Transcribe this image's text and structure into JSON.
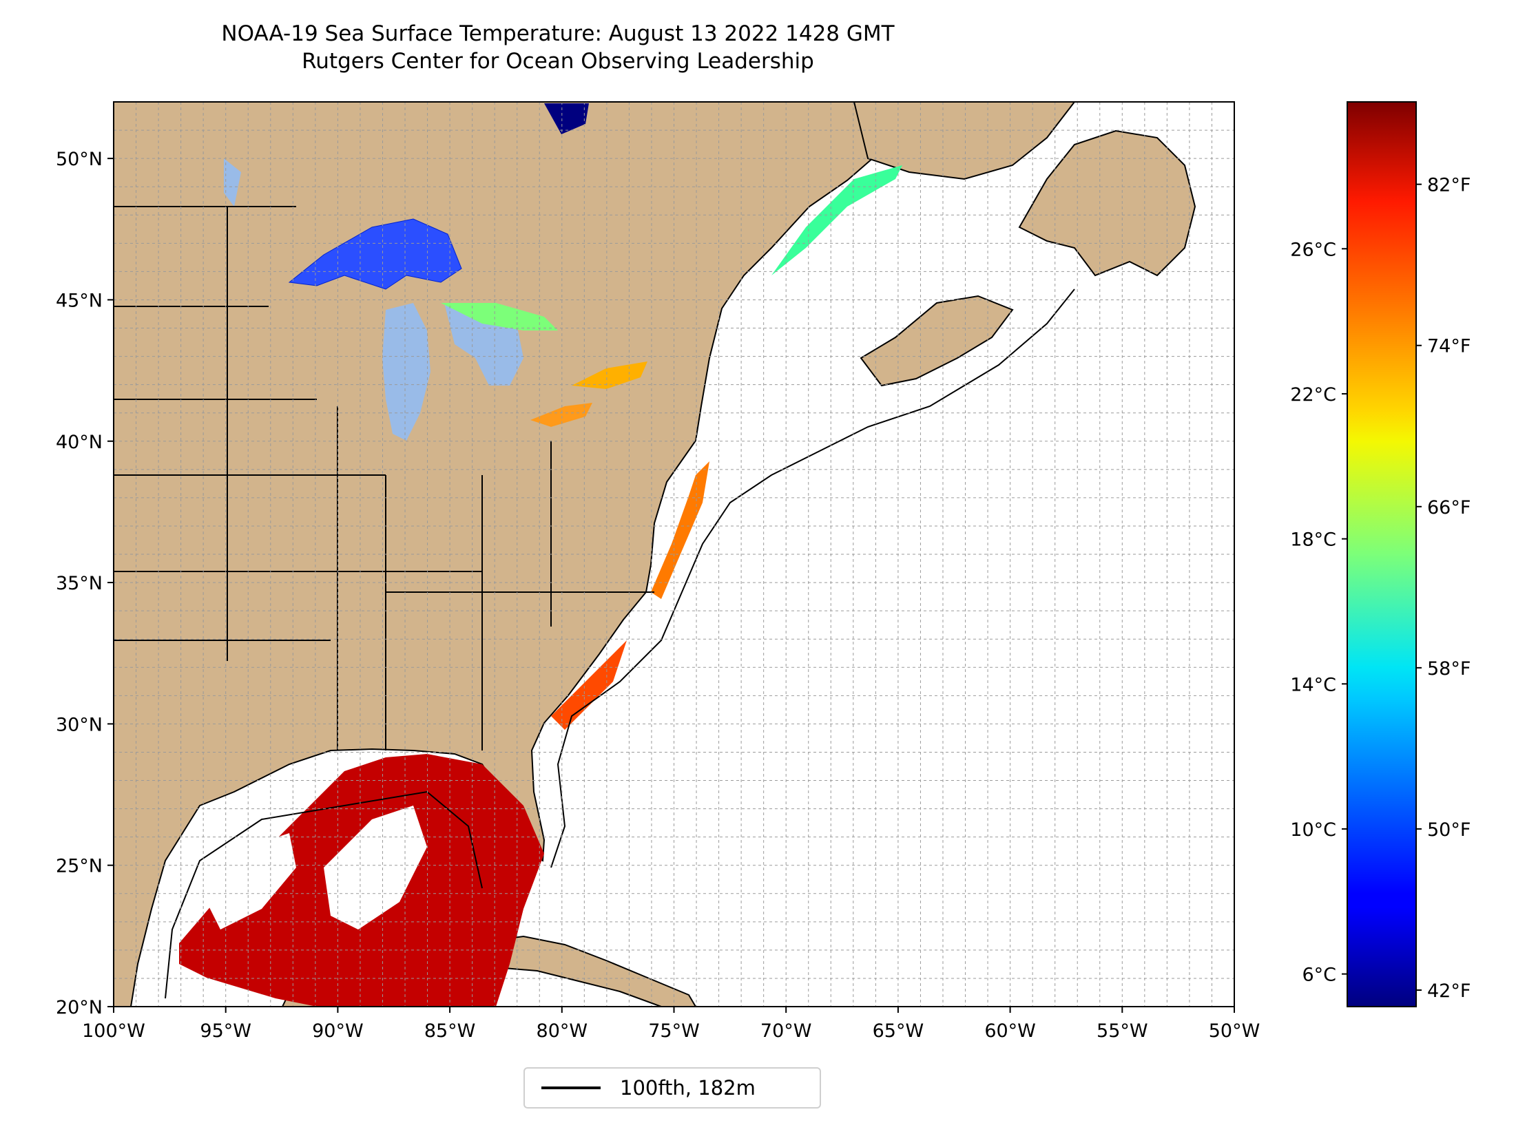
{
  "title": "NOAA-19 Sea Surface Temperature: August 13 2022 1428 GMT",
  "subtitle": "Rutgers Center for Ocean Observing Leadership",
  "map": {
    "lon_range": [
      -100,
      -50
    ],
    "lat_range": [
      20,
      52
    ],
    "x_ticks": [
      "100°W",
      "95°W",
      "90°W",
      "85°W",
      "80°W",
      "75°W",
      "70°W",
      "65°W",
      "60°W",
      "55°W",
      "50°W"
    ],
    "y_ticks": [
      "20°N",
      "25°N",
      "30°N",
      "35°N",
      "40°N",
      "45°N",
      "50°N"
    ],
    "land_color": "#d2b48c",
    "lake_color": "#99bbe8",
    "grid": true,
    "grid_style": "dashed gray, every 1 degree"
  },
  "colorbar": {
    "colormap": "jet",
    "celsius_ticks": [
      "6°C",
      "10°C",
      "14°C",
      "18°C",
      "22°C",
      "26°C"
    ],
    "fahrenheit_ticks": [
      "42°F",
      "50°F",
      "58°F",
      "66°F",
      "74°F",
      "82°F"
    ]
  },
  "legend": {
    "label": "100fth, 182m",
    "line_color": "#000000"
  }
}
